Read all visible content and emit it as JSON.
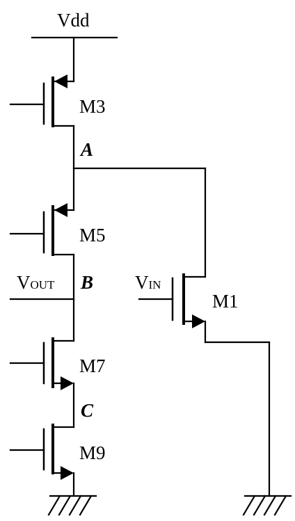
{
  "supply": {
    "label": "Vdd"
  },
  "devices": {
    "m3": "M3",
    "m5": "M5",
    "m7": "M7",
    "m9": "M9",
    "m1": "M1"
  },
  "nodes": {
    "a": "A",
    "b": "B",
    "c": "C"
  },
  "signals": {
    "vout": {
      "main": "V",
      "sub": "OUT"
    },
    "vin": {
      "main": "V",
      "sub": "IN"
    }
  }
}
